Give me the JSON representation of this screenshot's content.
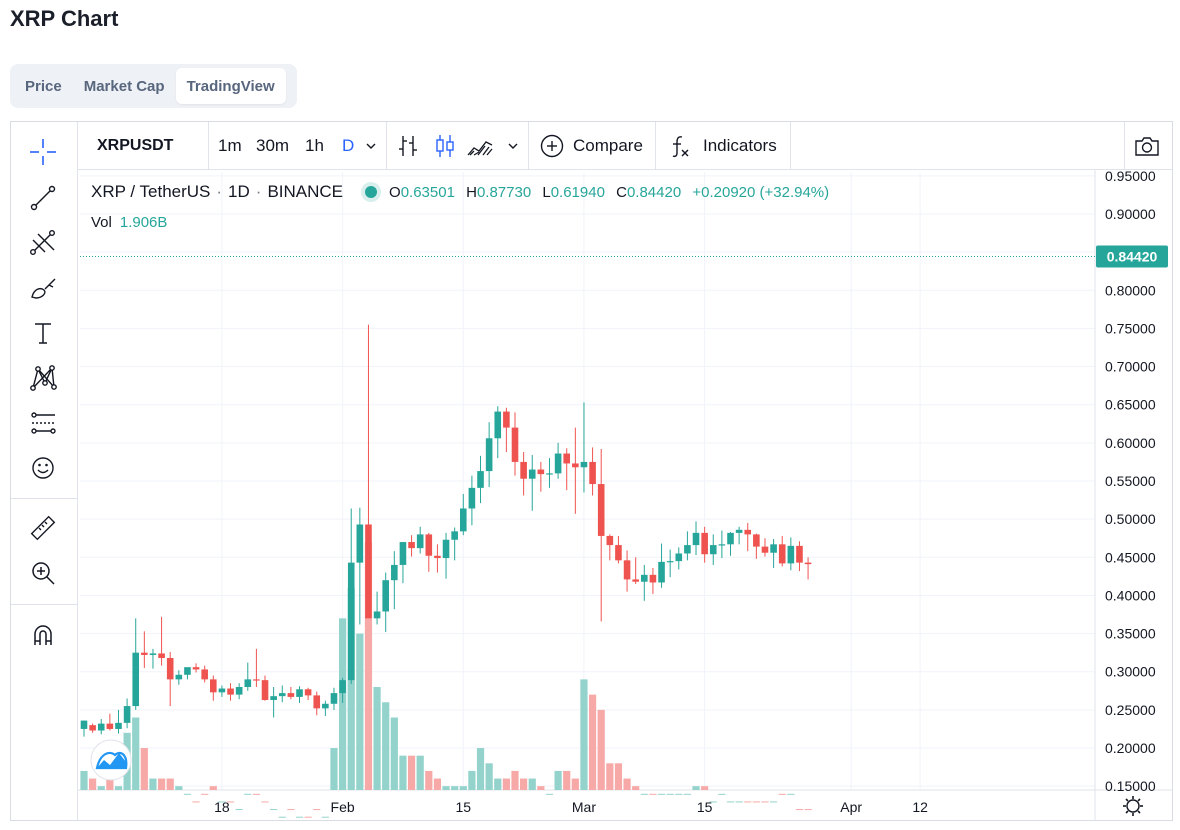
{
  "page": {
    "title": "XRP Chart"
  },
  "tabs": [
    {
      "label": "Price",
      "active": false
    },
    {
      "label": "Market Cap",
      "active": false
    },
    {
      "label": "TradingView",
      "active": true
    }
  ],
  "toolbar": {
    "symbol": "XRPUSDT",
    "intervals": [
      "1m",
      "30m",
      "1h",
      "D"
    ],
    "active_interval": "D",
    "compare_label": "Compare",
    "indicators_label": "Indicators"
  },
  "left_toolbar_icons": [
    "crosshair-icon",
    "trend-line-icon",
    "fib-tool-icon",
    "brush-icon",
    "text-icon",
    "pattern-icon",
    "forecast-icon",
    "emoji-icon",
    "ruler-icon",
    "zoom-in-icon",
    "magnet-icon"
  ],
  "legend": {
    "pair": "XRP / TetherUS",
    "sep1": "·",
    "interval": "1D",
    "sep2": "·",
    "exchange": "BINANCE",
    "o_label": "O",
    "o": "0.63501",
    "h_label": "H",
    "h": "0.87730",
    "l_label": "L",
    "l": "0.61940",
    "c_label": "C",
    "c": "0.84420",
    "change": "+0.20920 (+32.94%)",
    "vol_label": "Vol",
    "vol": "1.906B"
  },
  "colors": {
    "up": "#26a69a",
    "down": "#ef5350",
    "up_volume": "#93d3cc",
    "down_volume": "#f7a9a7",
    "price_tag": "#26a69a"
  },
  "chart_data": {
    "type": "candlestick",
    "symbol": "XRPUSDT",
    "interval": "1D",
    "y_ticks": [
      "0.95000",
      "0.90000",
      "0.85000",
      "0.80000",
      "0.75000",
      "0.70000",
      "0.65000",
      "0.60000",
      "0.55000",
      "0.50000",
      "0.45000",
      "0.40000",
      "0.35000",
      "0.30000",
      "0.25000",
      "0.20000",
      "0.15000"
    ],
    "ylim": [
      0.145,
      0.955
    ],
    "x_ticks": [
      {
        "label": "18",
        "index": 16
      },
      {
        "label": "Feb",
        "index": 30
      },
      {
        "label": "15",
        "index": 44
      },
      {
        "label": "Mar",
        "index": 58
      },
      {
        "label": "15",
        "index": 72
      },
      {
        "label": "Apr",
        "index": 89
      },
      {
        "label": "12",
        "index": 97
      }
    ],
    "last_price": "0.84420",
    "candles": [
      [
        0.225,
        0.236,
        0.215,
        0.236,
        0.17
      ],
      [
        0.23,
        0.232,
        0.22,
        0.223,
        0.16
      ],
      [
        0.223,
        0.238,
        0.218,
        0.232,
        0.15
      ],
      [
        0.232,
        0.245,
        0.223,
        0.225,
        0.16
      ],
      [
        0.225,
        0.25,
        0.219,
        0.233,
        0.15
      ],
      [
        0.233,
        0.265,
        0.226,
        0.255,
        0.22
      ],
      [
        0.255,
        0.37,
        0.25,
        0.325,
        0.24
      ],
      [
        0.325,
        0.353,
        0.305,
        0.322,
        0.2
      ],
      [
        0.322,
        0.33,
        0.304,
        0.324,
        0.16
      ],
      [
        0.324,
        0.372,
        0.308,
        0.318,
        0.16
      ],
      [
        0.318,
        0.326,
        0.255,
        0.29,
        0.16
      ],
      [
        0.29,
        0.302,
        0.283,
        0.296,
        0.15
      ],
      [
        0.296,
        0.305,
        0.29,
        0.306,
        0.14
      ],
      [
        0.306,
        0.311,
        0.299,
        0.303,
        0.13
      ],
      [
        0.303,
        0.308,
        0.286,
        0.29,
        0.14
      ],
      [
        0.29,
        0.295,
        0.262,
        0.273,
        0.15
      ],
      [
        0.273,
        0.282,
        0.267,
        0.278,
        0.13
      ],
      [
        0.278,
        0.285,
        0.262,
        0.27,
        0.13
      ],
      [
        0.27,
        0.285,
        0.264,
        0.28,
        0.12
      ],
      [
        0.28,
        0.312,
        0.275,
        0.29,
        0.14
      ],
      [
        0.29,
        0.33,
        0.28,
        0.289,
        0.14
      ],
      [
        0.289,
        0.295,
        0.262,
        0.263,
        0.13
      ],
      [
        0.263,
        0.28,
        0.24,
        0.268,
        0.12
      ],
      [
        0.268,
        0.282,
        0.26,
        0.272,
        0.11
      ],
      [
        0.272,
        0.28,
        0.264,
        0.267,
        0.12
      ],
      [
        0.267,
        0.281,
        0.259,
        0.277,
        0.11
      ],
      [
        0.277,
        0.279,
        0.263,
        0.269,
        0.11
      ],
      [
        0.269,
        0.274,
        0.243,
        0.252,
        0.12
      ],
      [
        0.252,
        0.262,
        0.242,
        0.258,
        0.11
      ],
      [
        0.258,
        0.279,
        0.25,
        0.272,
        0.2
      ],
      [
        0.272,
        0.292,
        0.259,
        0.289,
        0.37
      ],
      [
        0.289,
        0.514,
        0.284,
        0.443,
        0.41
      ],
      [
        0.443,
        0.515,
        0.362,
        0.493,
        0.35
      ],
      [
        0.493,
        0.755,
        0.376,
        0.37,
        0.47
      ],
      [
        0.37,
        0.405,
        0.362,
        0.379,
        0.28
      ],
      [
        0.379,
        0.43,
        0.352,
        0.42,
        0.26
      ],
      [
        0.42,
        0.458,
        0.382,
        0.44,
        0.24
      ],
      [
        0.44,
        0.468,
        0.416,
        0.47,
        0.19
      ],
      [
        0.47,
        0.479,
        0.451,
        0.462,
        0.19
      ],
      [
        0.462,
        0.49,
        0.455,
        0.48,
        0.19
      ],
      [
        0.48,
        0.482,
        0.431,
        0.452,
        0.17
      ],
      [
        0.452,
        0.467,
        0.43,
        0.449,
        0.16
      ],
      [
        0.449,
        0.482,
        0.422,
        0.473,
        0.15
      ],
      [
        0.473,
        0.489,
        0.446,
        0.484,
        0.15
      ],
      [
        0.484,
        0.533,
        0.479,
        0.514,
        0.15
      ],
      [
        0.514,
        0.557,
        0.492,
        0.541,
        0.17
      ],
      [
        0.541,
        0.583,
        0.521,
        0.563,
        0.2
      ],
      [
        0.563,
        0.627,
        0.542,
        0.606,
        0.18
      ],
      [
        0.606,
        0.648,
        0.58,
        0.641,
        0.16
      ],
      [
        0.641,
        0.646,
        0.588,
        0.62,
        0.16
      ],
      [
        0.62,
        0.64,
        0.557,
        0.575,
        0.17
      ],
      [
        0.575,
        0.588,
        0.531,
        0.553,
        0.16
      ],
      [
        0.553,
        0.584,
        0.511,
        0.565,
        0.16
      ],
      [
        0.565,
        0.575,
        0.536,
        0.559,
        0.15
      ],
      [
        0.559,
        0.58,
        0.541,
        0.56,
        0.14
      ],
      [
        0.56,
        0.6,
        0.553,
        0.586,
        0.17
      ],
      [
        0.586,
        0.593,
        0.538,
        0.573,
        0.17
      ],
      [
        0.573,
        0.62,
        0.507,
        0.568,
        0.16
      ],
      [
        0.568,
        0.653,
        0.535,
        0.575,
        0.29
      ],
      [
        0.575,
        0.594,
        0.531,
        0.546,
        0.27
      ],
      [
        0.546,
        0.592,
        0.366,
        0.478,
        0.25
      ],
      [
        0.478,
        0.48,
        0.446,
        0.466,
        0.18
      ],
      [
        0.466,
        0.478,
        0.442,
        0.446,
        0.18
      ],
      [
        0.446,
        0.459,
        0.405,
        0.421,
        0.16
      ],
      [
        0.421,
        0.45,
        0.415,
        0.418,
        0.15
      ],
      [
        0.418,
        0.44,
        0.393,
        0.427,
        0.14
      ],
      [
        0.427,
        0.436,
        0.402,
        0.417,
        0.14
      ],
      [
        0.417,
        0.468,
        0.41,
        0.444,
        0.14
      ],
      [
        0.444,
        0.46,
        0.424,
        0.445,
        0.14
      ],
      [
        0.445,
        0.463,
        0.434,
        0.455,
        0.14
      ],
      [
        0.455,
        0.484,
        0.446,
        0.466,
        0.14
      ],
      [
        0.466,
        0.497,
        0.453,
        0.482,
        0.15
      ],
      [
        0.482,
        0.49,
        0.443,
        0.454,
        0.15
      ],
      [
        0.454,
        0.48,
        0.44,
        0.466,
        0.13
      ],
      [
        0.466,
        0.485,
        0.449,
        0.467,
        0.14
      ],
      [
        0.467,
        0.483,
        0.452,
        0.482,
        0.13
      ],
      [
        0.482,
        0.49,
        0.467,
        0.486,
        0.13
      ],
      [
        0.486,
        0.495,
        0.458,
        0.48,
        0.13
      ],
      [
        0.48,
        0.481,
        0.448,
        0.464,
        0.13
      ],
      [
        0.464,
        0.475,
        0.451,
        0.456,
        0.13
      ],
      [
        0.456,
        0.474,
        0.436,
        0.467,
        0.13
      ],
      [
        0.467,
        0.478,
        0.438,
        0.442,
        0.14
      ],
      [
        0.442,
        0.476,
        0.433,
        0.465,
        0.14
      ],
      [
        0.465,
        0.471,
        0.432,
        0.443,
        0.12
      ],
      [
        0.443,
        0.45,
        0.421,
        0.441,
        0.12
      ]
    ],
    "candles_note_fields": [
      "open",
      "high",
      "low",
      "close",
      "volume_axis_level"
    ]
  }
}
